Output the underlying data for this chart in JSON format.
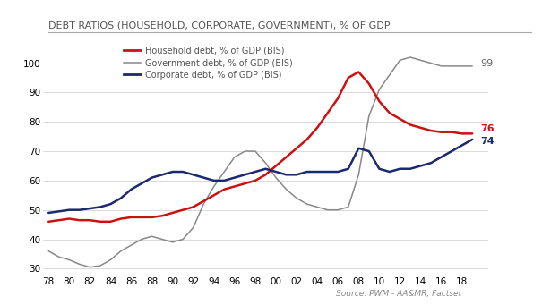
{
  "title": "DEBT RATIOS (HOUSEHOLD, CORPORATE, GOVERNMENT), % OF GDP",
  "source": "Source: PWM - AA&MR, Factset",
  "background_color": "#ffffff",
  "plot_bg_color": "#ffffff",
  "xlim": [
    1977.5,
    2020.5
  ],
  "ylim": [
    28,
    108
  ],
  "yticks": [
    30,
    40,
    50,
    60,
    70,
    80,
    90,
    100
  ],
  "xtick_labels": [
    "78",
    "80",
    "82",
    "84",
    "86",
    "88",
    "90",
    "92",
    "94",
    "96",
    "98",
    "00",
    "02",
    "04",
    "06",
    "08",
    "10",
    "12",
    "14",
    "16",
    "18"
  ],
  "xtick_vals": [
    1978,
    1980,
    1982,
    1984,
    1986,
    1988,
    1990,
    1992,
    1994,
    1996,
    1998,
    2000,
    2002,
    2004,
    2006,
    2008,
    2010,
    2012,
    2014,
    2016,
    2018
  ],
  "household_color": "#cc1111",
  "government_color": "#888888",
  "corporate_color": "#1a2a6c",
  "household_end_label": "76",
  "government_end_label": "99",
  "corporate_end_label": "74",
  "household_x": [
    1978,
    1979,
    1980,
    1981,
    1982,
    1983,
    1984,
    1985,
    1986,
    1987,
    1988,
    1989,
    1990,
    1991,
    1992,
    1993,
    1994,
    1995,
    1996,
    1997,
    1998,
    1999,
    2000,
    2001,
    2002,
    2003,
    2004,
    2005,
    2006,
    2007,
    2008,
    2009,
    2010,
    2011,
    2012,
    2013,
    2014,
    2015,
    2016,
    2017,
    2018,
    2019
  ],
  "household_y": [
    46,
    46.5,
    47,
    46.5,
    46.5,
    46,
    46,
    47,
    47.5,
    47.5,
    47.5,
    48,
    49,
    50,
    51,
    53,
    55,
    57,
    58,
    59,
    60,
    62,
    65,
    68,
    71,
    74,
    78,
    83,
    88,
    95,
    97,
    93,
    87,
    83,
    81,
    79,
    78,
    77,
    76.5,
    76.5,
    76,
    76
  ],
  "government_x": [
    1978,
    1979,
    1980,
    1981,
    1982,
    1983,
    1984,
    1985,
    1986,
    1987,
    1988,
    1989,
    1990,
    1991,
    1992,
    1993,
    1994,
    1995,
    1996,
    1997,
    1998,
    1999,
    2000,
    2001,
    2002,
    2003,
    2004,
    2005,
    2006,
    2007,
    2008,
    2009,
    2010,
    2011,
    2012,
    2013,
    2014,
    2015,
    2016,
    2017,
    2018,
    2019
  ],
  "government_y": [
    36,
    34,
    33,
    31.5,
    30.5,
    31,
    33,
    36,
    38,
    40,
    41,
    40,
    39,
    40,
    44,
    52,
    58,
    63,
    68,
    70,
    70,
    66,
    61,
    57,
    54,
    52,
    51,
    50,
    50,
    51,
    62,
    82,
    91,
    96,
    101,
    102,
    101,
    100,
    99,
    99,
    99,
    99
  ],
  "corporate_x": [
    1978,
    1979,
    1980,
    1981,
    1982,
    1983,
    1984,
    1985,
    1986,
    1987,
    1988,
    1989,
    1990,
    1991,
    1992,
    1993,
    1994,
    1995,
    1996,
    1997,
    1998,
    1999,
    2000,
    2001,
    2002,
    2003,
    2004,
    2005,
    2006,
    2007,
    2008,
    2009,
    2010,
    2011,
    2012,
    2013,
    2014,
    2015,
    2016,
    2017,
    2018,
    2019
  ],
  "corporate_y": [
    49,
    49.5,
    50,
    50,
    50.5,
    51,
    52,
    54,
    57,
    59,
    61,
    62,
    63,
    63,
    62,
    61,
    60,
    60,
    61,
    62,
    63,
    64,
    63,
    62,
    62,
    63,
    63,
    63,
    63,
    64,
    71,
    70,
    64,
    63,
    64,
    64,
    65,
    66,
    68,
    70,
    72,
    74
  ],
  "legend_entries": [
    {
      "label": "Household debt, % of GDP (BIS)",
      "color": "#cc1111"
    },
    {
      "label": "Government debt, % of GDP (BIS)",
      "color": "#888888"
    },
    {
      "label": "Corporate debt, % of GDP (BIS)",
      "color": "#1a2a6c"
    }
  ]
}
